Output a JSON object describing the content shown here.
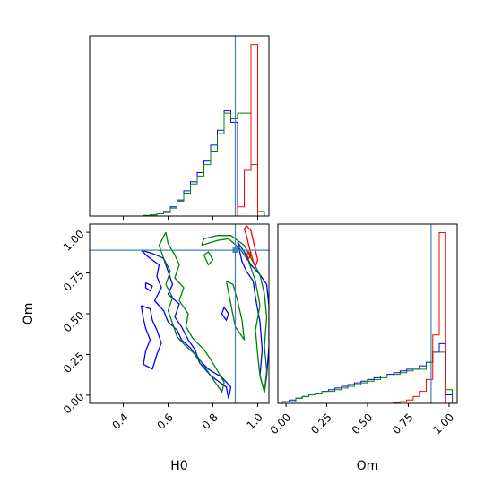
{
  "chart_data": [
    {
      "type": "histogram",
      "panel": "H0 marginal",
      "xlim": [
        0.25,
        1.05
      ],
      "bin_edges": [
        0.25,
        0.28,
        0.31,
        0.34,
        0.37,
        0.4,
        0.43,
        0.46,
        0.49,
        0.52,
        0.55,
        0.58,
        0.61,
        0.64,
        0.67,
        0.7,
        0.73,
        0.76,
        0.79,
        0.82,
        0.85,
        0.88,
        0.91,
        0.94,
        0.97,
        1.0,
        1.03
      ],
      "truth": 0.9,
      "series": [
        {
          "color": "#0000ff",
          "counts": [
            0,
            0,
            0,
            0,
            0,
            0,
            0,
            0,
            0.5,
            1,
            2,
            4,
            8,
            14,
            22,
            30,
            38,
            48,
            62,
            75,
            92,
            82,
            0,
            0,
            0,
            0
          ]
        },
        {
          "color": "#008000",
          "counts": [
            0,
            0,
            0,
            0,
            0,
            0,
            0,
            0,
            0.5,
            1,
            2,
            3,
            7,
            13,
            20,
            28,
            35,
            45,
            56,
            72,
            90,
            85,
            90,
            90,
            45,
            4
          ]
        },
        {
          "color": "#ff0000",
          "counts": [
            0,
            0,
            0,
            0,
            0,
            0,
            0,
            0,
            0,
            0,
            0,
            0,
            0,
            0,
            0,
            0,
            0,
            0,
            0,
            0,
            0,
            0,
            8,
            40,
            150,
            0
          ]
        }
      ]
    },
    {
      "type": "contour",
      "panel": "H0 vs Om",
      "xlabel": "H0",
      "ylabel": "Om",
      "xlim": [
        0.25,
        1.05
      ],
      "ylim": [
        -0.05,
        1.05
      ],
      "xticks": [
        "0.4",
        "0.6",
        "0.8",
        "1.0"
      ],
      "yticks": [
        "0.00",
        "0.25",
        "0.50",
        "0.75",
        "1.00"
      ],
      "truth": {
        "x": 0.9,
        "y": 0.89
      },
      "series": [
        {
          "color": "#0000ff",
          "contours": [
            [
              [
                0.48,
                0.89
              ],
              [
                0.53,
                0.87
              ],
              [
                0.58,
                0.84
              ],
              [
                0.6,
                0.76
              ],
              [
                0.62,
                0.68
              ],
              [
                0.6,
                0.62
              ],
              [
                0.65,
                0.56
              ],
              [
                0.63,
                0.48
              ],
              [
                0.66,
                0.42
              ],
              [
                0.69,
                0.34
              ],
              [
                0.72,
                0.28
              ],
              [
                0.74,
                0.2
              ],
              [
                0.79,
                0.12
              ],
              [
                0.86,
                0.05
              ],
              [
                0.87,
                -0.02
              ],
              [
                0.88,
                0.05
              ],
              [
                0.84,
                0.11
              ],
              [
                0.78,
                0.16
              ],
              [
                0.73,
                0.23
              ],
              [
                0.7,
                0.29
              ],
              [
                0.66,
                0.34
              ],
              [
                0.64,
                0.4
              ],
              [
                0.6,
                0.45
              ],
              [
                0.58,
                0.52
              ],
              [
                0.54,
                0.58
              ],
              [
                0.57,
                0.66
              ],
              [
                0.55,
                0.73
              ],
              [
                0.56,
                0.8
              ],
              [
                0.51,
                0.85
              ],
              [
                0.48,
                0.89
              ]
            ],
            [
              [
                0.48,
                0.55
              ],
              [
                0.52,
                0.53
              ],
              [
                0.53,
                0.46
              ],
              [
                0.55,
                0.4
              ],
              [
                0.57,
                0.32
              ],
              [
                0.55,
                0.25
              ],
              [
                0.53,
                0.16
              ],
              [
                0.49,
                0.19
              ],
              [
                0.5,
                0.27
              ],
              [
                0.52,
                0.34
              ],
              [
                0.5,
                0.41
              ],
              [
                0.49,
                0.47
              ],
              [
                0.48,
                0.55
              ]
            ],
            [
              [
                0.5,
                0.69
              ],
              [
                0.53,
                0.67
              ],
              [
                0.52,
                0.64
              ],
              [
                0.5,
                0.66
              ],
              [
                0.5,
                0.69
              ]
            ],
            [
              [
                0.91,
                0.94
              ],
              [
                0.94,
                0.88
              ],
              [
                0.97,
                0.8
              ],
              [
                1.01,
                0.74
              ],
              [
                1.04,
                0.68
              ],
              [
                1.05,
                0.55
              ],
              [
                1.05,
                0.3
              ],
              [
                1.04,
                0.12
              ],
              [
                1.03,
                0.02
              ],
              [
                1.01,
                0.12
              ],
              [
                1.02,
                0.28
              ],
              [
                1.01,
                0.45
              ],
              [
                0.99,
                0.6
              ],
              [
                0.98,
                0.7
              ],
              [
                0.95,
                0.76
              ],
              [
                0.93,
                0.82
              ],
              [
                0.91,
                0.94
              ]
            ],
            [
              [
                0.85,
                0.54
              ],
              [
                0.87,
                0.5
              ],
              [
                0.86,
                0.46
              ],
              [
                0.84,
                0.5
              ],
              [
                0.85,
                0.54
              ]
            ]
          ]
        },
        {
          "color": "#008000",
          "contours": [
            [
              [
                0.59,
                1.0
              ],
              [
                0.6,
                0.93
              ],
              [
                0.63,
                0.86
              ],
              [
                0.65,
                0.8
              ],
              [
                0.63,
                0.72
              ],
              [
                0.67,
                0.66
              ],
              [
                0.65,
                0.58
              ],
              [
                0.69,
                0.5
              ],
              [
                0.68,
                0.42
              ],
              [
                0.71,
                0.35
              ],
              [
                0.76,
                0.28
              ],
              [
                0.79,
                0.22
              ],
              [
                0.82,
                0.15
              ],
              [
                0.85,
                0.08
              ],
              [
                0.84,
                0.02
              ],
              [
                0.81,
                0.08
              ],
              [
                0.77,
                0.16
              ],
              [
                0.73,
                0.24
              ],
              [
                0.68,
                0.3
              ],
              [
                0.64,
                0.36
              ],
              [
                0.62,
                0.44
              ],
              [
                0.6,
                0.52
              ],
              [
                0.62,
                0.6
              ],
              [
                0.59,
                0.68
              ],
              [
                0.61,
                0.76
              ],
              [
                0.58,
                0.84
              ],
              [
                0.56,
                0.92
              ],
              [
                0.59,
                1.0
              ]
            ],
            [
              [
                0.75,
                0.92
              ],
              [
                0.82,
                0.95
              ],
              [
                0.87,
                0.96
              ],
              [
                0.92,
                0.9
              ],
              [
                0.96,
                0.82
              ],
              [
                0.99,
                0.7
              ],
              [
                1.01,
                0.55
              ],
              [
                0.99,
                0.4
              ],
              [
                1.0,
                0.25
              ],
              [
                1.01,
                0.12
              ],
              [
                1.03,
                0.02
              ],
              [
                1.04,
                0.15
              ],
              [
                1.03,
                0.3
              ],
              [
                1.04,
                0.48
              ],
              [
                1.03,
                0.62
              ],
              [
                1.01,
                0.74
              ],
              [
                0.97,
                0.84
              ],
              [
                0.94,
                0.92
              ],
              [
                0.88,
                0.98
              ],
              [
                0.82,
                0.98
              ],
              [
                0.76,
                0.96
              ],
              [
                0.75,
                0.92
              ]
            ],
            [
              [
                0.86,
                0.7
              ],
              [
                0.88,
                0.56
              ],
              [
                0.9,
                0.42
              ],
              [
                0.94,
                0.34
              ],
              [
                0.93,
                0.46
              ],
              [
                0.91,
                0.58
              ],
              [
                0.89,
                0.68
              ],
              [
                0.86,
                0.7
              ]
            ],
            [
              [
                0.76,
                0.86
              ],
              [
                0.78,
                0.8
              ],
              [
                0.8,
                0.83
              ],
              [
                0.78,
                0.88
              ],
              [
                0.76,
                0.86
              ]
            ]
          ]
        },
        {
          "color": "#ff0000",
          "contours": [
            [
              [
                0.94,
                1.02
              ],
              [
                0.95,
                0.98
              ],
              [
                0.96,
                0.92
              ],
              [
                0.97,
                0.87
              ],
              [
                0.98,
                0.82
              ],
              [
                0.99,
                0.79
              ],
              [
                1.0,
                0.83
              ],
              [
                0.99,
                0.89
              ],
              [
                0.98,
                0.95
              ],
              [
                0.97,
                1.01
              ],
              [
                0.95,
                1.04
              ],
              [
                0.94,
                1.02
              ]
            ],
            [
              [
                0.95,
                0.86
              ],
              [
                0.96,
                0.84
              ],
              [
                0.97,
                0.86
              ],
              [
                0.96,
                0.88
              ],
              [
                0.95,
                0.86
              ]
            ]
          ]
        }
      ]
    },
    {
      "type": "histogram",
      "panel": "Om marginal",
      "xlabel": "Om",
      "xlim": [
        -0.05,
        1.05
      ],
      "xticks": [
        "0.00",
        "0.25",
        "0.50",
        "0.75",
        "1.00"
      ],
      "bin_edges": [
        -0.02,
        0.02,
        0.06,
        0.1,
        0.14,
        0.18,
        0.22,
        0.26,
        0.3,
        0.34,
        0.38,
        0.42,
        0.46,
        0.5,
        0.54,
        0.58,
        0.62,
        0.66,
        0.7,
        0.74,
        0.78,
        0.82,
        0.86,
        0.9,
        0.94,
        0.98,
        1.02
      ],
      "truth": 0.89,
      "series": [
        {
          "color": "#0000ff",
          "counts": [
            1,
            2,
            3,
            4,
            5,
            6,
            7,
            8,
            9,
            10,
            11,
            12,
            13,
            14,
            15,
            16,
            17,
            18,
            19,
            20,
            20,
            22,
            24,
            30,
            35,
            5
          ]
        },
        {
          "color": "#008000",
          "counts": [
            1,
            1,
            3,
            4,
            5,
            6,
            7,
            7,
            8,
            9,
            10,
            11,
            12,
            13,
            14,
            15,
            16,
            17,
            18,
            19,
            20,
            20,
            24,
            30,
            30,
            8
          ]
        },
        {
          "color": "#ff0000",
          "counts": [
            0,
            0,
            0,
            0,
            0,
            0,
            0,
            0,
            0,
            0,
            0,
            0,
            0,
            0,
            0,
            0,
            0,
            0.5,
            1,
            2,
            4,
            7,
            14,
            40,
            100,
            0
          ]
        }
      ]
    }
  ]
}
